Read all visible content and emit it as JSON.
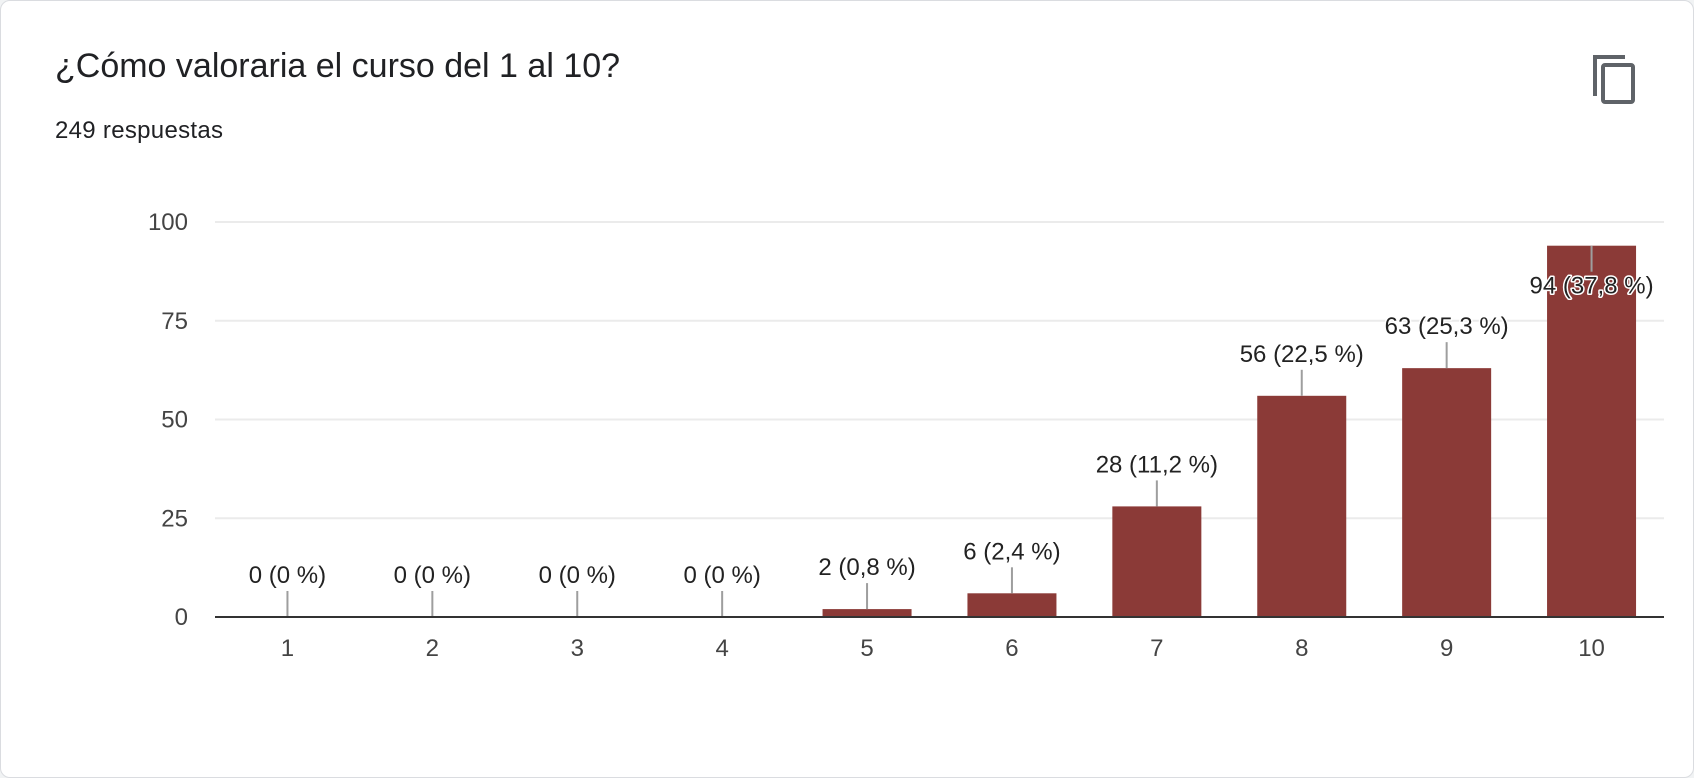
{
  "card": {
    "title": "¿Cómo valoraria el curso del 1 al 10?",
    "subtitle": "249 respuestas",
    "copy_icon": "copy-icon"
  },
  "colors": {
    "bar": "#8b3a37",
    "gridline": "#ebebeb",
    "baseline": "#333333",
    "leader_line": "#9e9e9e",
    "icon": "#5f6368"
  },
  "chart_data": {
    "type": "bar",
    "title": "",
    "xlabel": "",
    "ylabel": "",
    "categories": [
      "1",
      "2",
      "3",
      "4",
      "5",
      "6",
      "7",
      "8",
      "9",
      "10"
    ],
    "values": [
      0,
      0,
      0,
      0,
      2,
      6,
      28,
      56,
      63,
      94
    ],
    "data_labels": [
      "0 (0 %)",
      "0 (0 %)",
      "0 (0 %)",
      "0 (0 %)",
      "2 (0,8 %)",
      "6 (2,4 %)",
      "28 (11,2 %)",
      "56 (22,5 %)",
      "63 (25,3 %)",
      "94 (37,8 %)"
    ],
    "ylim": [
      0,
      100
    ],
    "yticks": [
      0,
      25,
      50,
      75,
      100
    ],
    "grid": true,
    "legend": "none"
  }
}
